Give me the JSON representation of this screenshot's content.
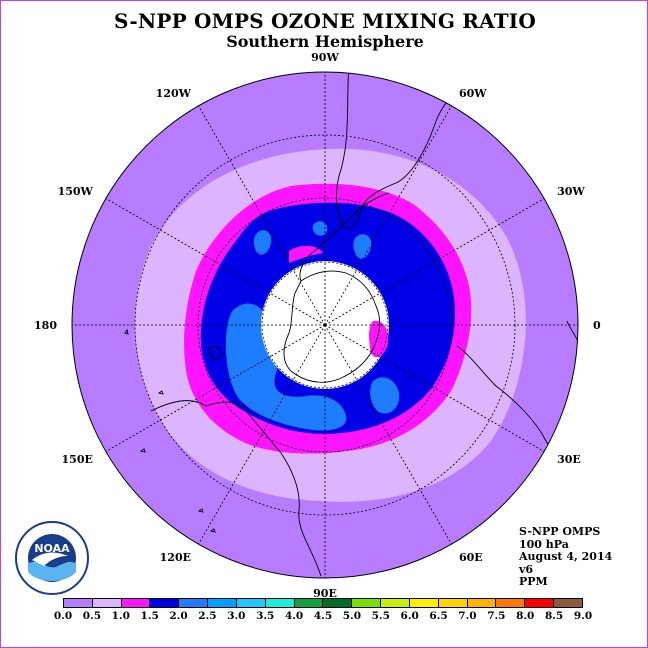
{
  "title": "S-NPP OMPS OZONE MIXING RATIO",
  "subtitle": "Southern Hemisphere",
  "longitude_labels": [
    "0",
    "30W",
    "60W",
    "90W",
    "120W",
    "150W",
    "180",
    "150E",
    "120E",
    "90E",
    "60E",
    "30E"
  ],
  "info": {
    "instrument": "S-NPP OMPS",
    "level": "100 hPa",
    "date": "August 4, 2014",
    "version": "v6",
    "units": "PPM"
  },
  "logo_text": "NOAA",
  "colorbar": {
    "ticks": [
      "0.0",
      "0.5",
      "1.0",
      "1.5",
      "2.0",
      "2.5",
      "3.0",
      "3.5",
      "4.0",
      "4.5",
      "5.0",
      "5.5",
      "6.0",
      "6.5",
      "7.0",
      "7.5",
      "8.0",
      "8.5",
      "9.0"
    ],
    "colors": [
      "#b77cff",
      "#dcb4ff",
      "#ff14ff",
      "#0000e6",
      "#1e7cff",
      "#00a0ff",
      "#1ec8ff",
      "#18f0dc",
      "#10a040",
      "#006e28",
      "#78e000",
      "#c8f000",
      "#fff000",
      "#ffd200",
      "#ffb400",
      "#ff7800",
      "#ff0000",
      "#8c5a3c"
    ]
  },
  "colors": {
    "background_field": "#b77cff",
    "ring_light": "#dcb4ff",
    "ring_magenta": "#ff14ff",
    "ring_blue": "#0000e6",
    "patch_medium_blue": "#1e7cff",
    "polar_missing": "#ffffff"
  }
}
